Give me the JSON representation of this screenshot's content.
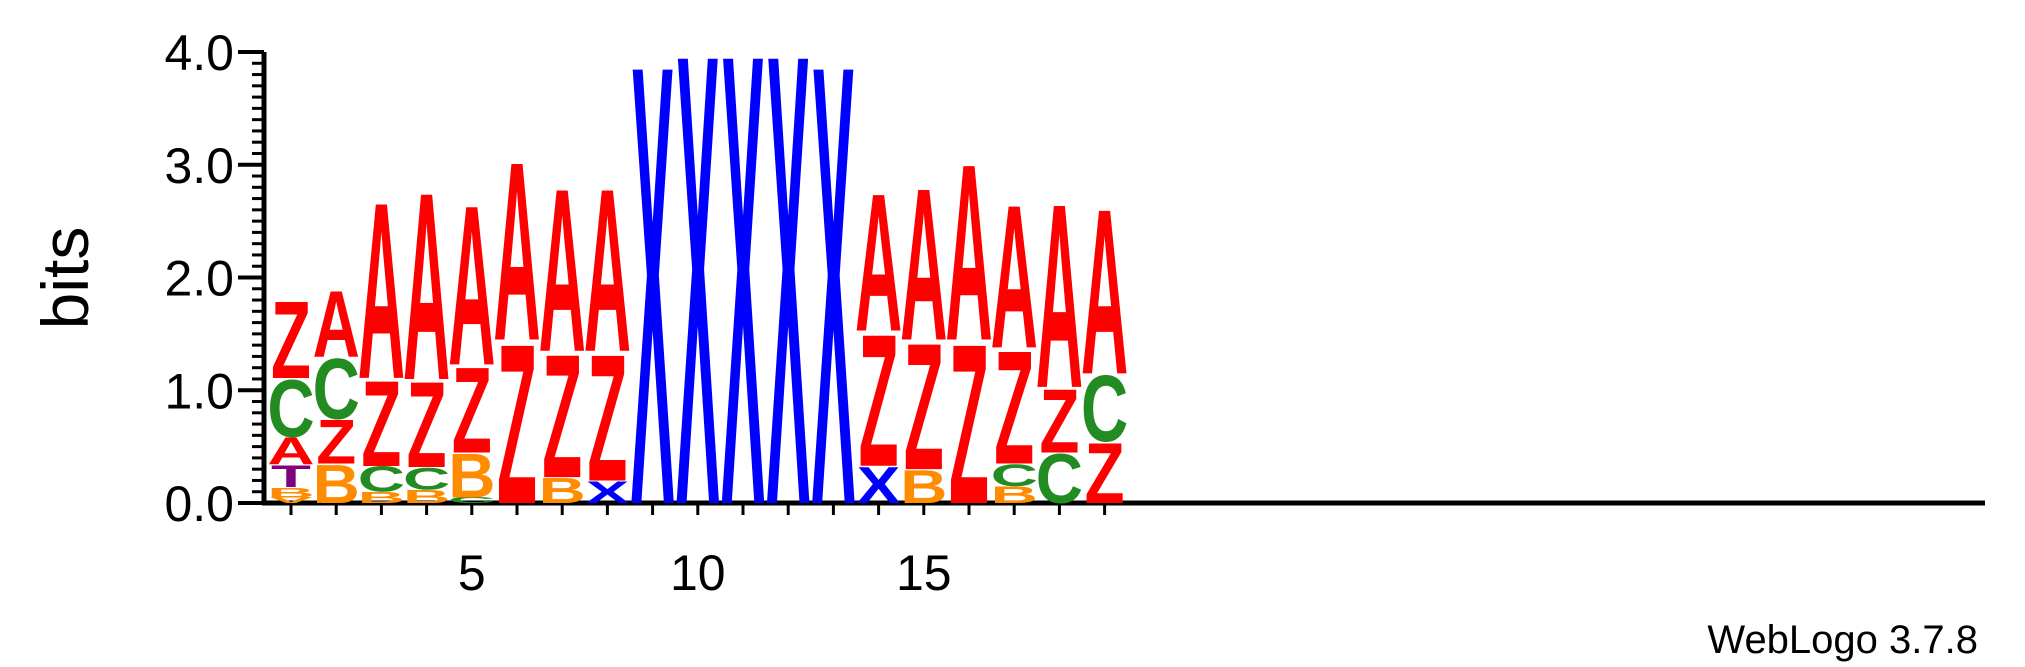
{
  "chart_data": {
    "type": "sequence-logo",
    "ylabel": "bits",
    "ylim": [
      0,
      4.0
    ],
    "y_ticks": [
      "0.0",
      "1.0",
      "2.0",
      "3.0",
      "4.0"
    ],
    "x_tick_values": [
      5,
      10,
      15
    ],
    "x_tick_labels": [
      "5",
      "10",
      "15"
    ],
    "positions": [
      {
        "pos": 1,
        "stack": [
          {
            "letter": "V",
            "bits": 0.05
          },
          {
            "letter": "B",
            "bits": 0.09
          },
          {
            "letter": "T",
            "bits": 0.2
          },
          {
            "letter": "A",
            "bits": 0.25
          },
          {
            "letter": "C",
            "bits": 0.52
          },
          {
            "letter": "Z",
            "bits": 0.7
          }
        ]
      },
      {
        "pos": 2,
        "stack": [
          {
            "letter": "B",
            "bits": 0.35
          },
          {
            "letter": "Z",
            "bits": 0.4
          },
          {
            "letter": "C",
            "bits": 0.55
          },
          {
            "letter": "A",
            "bits": 0.6
          }
        ]
      },
      {
        "pos": 3,
        "stack": [
          {
            "letter": "B",
            "bits": 0.1
          },
          {
            "letter": "C",
            "bits": 0.23
          },
          {
            "letter": "Z",
            "bits": 0.78
          },
          {
            "letter": "A",
            "bits": 1.6
          }
        ]
      },
      {
        "pos": 4,
        "stack": [
          {
            "letter": "B",
            "bits": 0.12
          },
          {
            "letter": "C",
            "bits": 0.2
          },
          {
            "letter": "Z",
            "bits": 0.78
          },
          {
            "letter": "A",
            "bits": 1.7
          }
        ]
      },
      {
        "pos": 5,
        "stack": [
          {
            "letter": "C",
            "bits": 0.05
          },
          {
            "letter": "B",
            "bits": 0.4
          },
          {
            "letter": "Z",
            "bits": 0.78
          },
          {
            "letter": "A",
            "bits": 1.45
          }
        ]
      },
      {
        "pos": 6,
        "stack": [
          {
            "letter": "Z",
            "bits": 1.45
          },
          {
            "letter": "A",
            "bits": 1.62
          }
        ]
      },
      {
        "pos": 7,
        "stack": [
          {
            "letter": "B",
            "bits": 0.23
          },
          {
            "letter": "Z",
            "bits": 1.12
          },
          {
            "letter": "A",
            "bits": 1.48
          }
        ]
      },
      {
        "pos": 8,
        "stack": [
          {
            "letter": "X",
            "bits": 0.2
          },
          {
            "letter": "Z",
            "bits": 1.15
          },
          {
            "letter": "A",
            "bits": 1.48
          }
        ]
      },
      {
        "pos": 9,
        "stack": [
          {
            "letter": "X",
            "bits": 4.0
          }
        ]
      },
      {
        "pos": 10,
        "stack": [
          {
            "letter": "X",
            "bits": 4.1
          }
        ]
      },
      {
        "pos": 11,
        "stack": [
          {
            "letter": "X",
            "bits": 4.1
          }
        ]
      },
      {
        "pos": 12,
        "stack": [
          {
            "letter": "X",
            "bits": 4.1
          }
        ]
      },
      {
        "pos": 13,
        "stack": [
          {
            "letter": "X",
            "bits": 4.0
          }
        ]
      },
      {
        "pos": 14,
        "stack": [
          {
            "letter": "X",
            "bits": 0.33
          },
          {
            "letter": "Z",
            "bits": 1.2
          },
          {
            "letter": "A",
            "bits": 1.25
          }
        ]
      },
      {
        "pos": 15,
        "stack": [
          {
            "letter": "B",
            "bits": 0.3
          },
          {
            "letter": "Z",
            "bits": 1.15
          },
          {
            "letter": "A",
            "bits": 1.38
          }
        ]
      },
      {
        "pos": 16,
        "stack": [
          {
            "letter": "Z",
            "bits": 1.45
          },
          {
            "letter": "A",
            "bits": 1.6
          }
        ]
      },
      {
        "pos": 17,
        "stack": [
          {
            "letter": "B",
            "bits": 0.15
          },
          {
            "letter": "C",
            "bits": 0.2
          },
          {
            "letter": "Z",
            "bits": 1.03
          },
          {
            "letter": "A",
            "bits": 1.3
          }
        ]
      },
      {
        "pos": 18,
        "stack": [
          {
            "letter": "C",
            "bits": 0.45
          },
          {
            "letter": "Z",
            "bits": 0.58
          },
          {
            "letter": "A",
            "bits": 1.67
          }
        ]
      },
      {
        "pos": 19,
        "stack": [
          {
            "letter": "Z",
            "bits": 0.55
          },
          {
            "letter": "C",
            "bits": 0.6
          },
          {
            "letter": "A",
            "bits": 1.5
          }
        ]
      }
    ],
    "colors": {
      "A": "#ff0000",
      "Z": "#ff0000",
      "X": "#0000ff",
      "C": "#228b22",
      "B": "#ff8c00",
      "T": "#800080",
      "V": "#ff8c00"
    }
  },
  "footer": {
    "credit": "WebLogo 3.7.8"
  }
}
